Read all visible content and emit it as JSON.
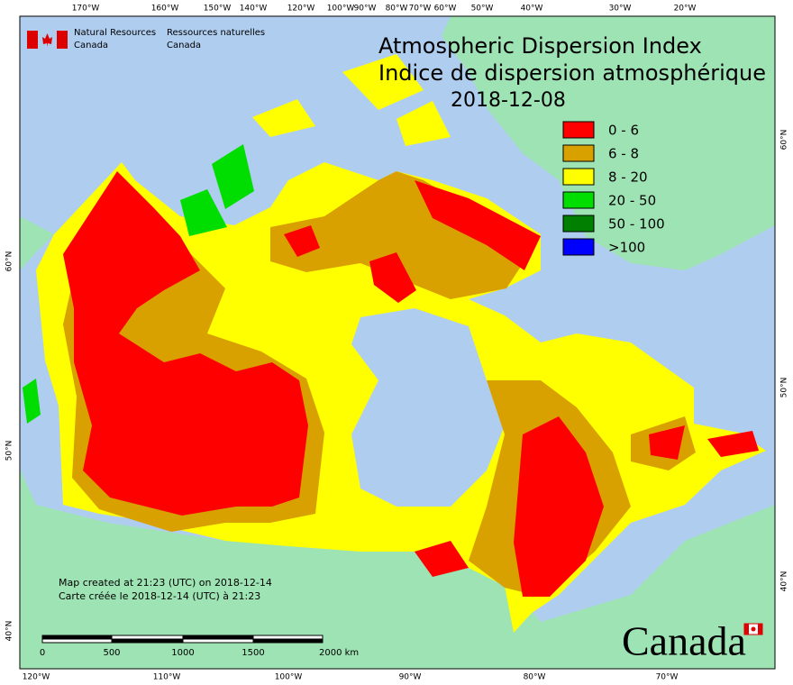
{
  "logo": {
    "en_line1": "Natural Resources",
    "en_line2": "Canada",
    "fr_line1": "Ressources naturelles",
    "fr_line2": "Canada"
  },
  "title": {
    "en": "Atmospheric Dispersion Index",
    "fr": "Indice de dispersion atmosphérique",
    "date": "2018-12-08"
  },
  "legend": [
    {
      "label": "0 - 6",
      "color": "#ff0000"
    },
    {
      "label": "6 - 8",
      "color": "#d9a100"
    },
    {
      "label": "8 - 20",
      "color": "#ffff00"
    },
    {
      "label": "20 - 50",
      "color": "#00dd00"
    },
    {
      "label": "50 - 100",
      "color": "#007f00"
    },
    {
      "label": ">100",
      "color": "#0000ff"
    }
  ],
  "credits": {
    "en": "Map created at 21:23 (UTC) on 2018-12-14",
    "fr": "Carte créée le 2018-12-14 (UTC) à 21:23"
  },
  "scale_bar": [
    "0",
    "500",
    "1000",
    "1500",
    "2000  km"
  ],
  "graticule": {
    "top": [
      "170°W",
      "160°W",
      "150°W",
      "140°W",
      "120°W",
      "100°W",
      "90°W",
      "80°W",
      "70°W",
      "60°W",
      "50°W",
      "40°W",
      "30°W",
      "20°W"
    ],
    "bottom": [
      "120°W",
      "110°W",
      "100°W",
      "90°W",
      "80°W",
      "70°W"
    ],
    "left": [
      "60°N",
      "50°N",
      "40°N"
    ],
    "right": [
      "60°N",
      "50°N",
      "40°N"
    ]
  },
  "wordmark": "Canada"
}
